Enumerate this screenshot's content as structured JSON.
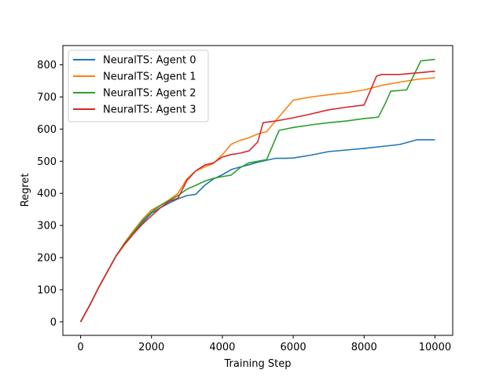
{
  "chart_data": {
    "type": "line",
    "xlabel": "Training Step",
    "ylabel": "Regret",
    "xlim": [
      -500,
      10500
    ],
    "ylim": [
      -42,
      860
    ],
    "xticks": [
      0,
      2000,
      4000,
      6000,
      8000,
      10000
    ],
    "yticks": [
      0,
      100,
      200,
      300,
      400,
      500,
      600,
      700,
      800
    ],
    "grid": false,
    "legend_position": "top-left",
    "series": [
      {
        "name": "NeuralTS: Agent 0",
        "color": "#1f77b4",
        "points": [
          [
            0,
            0
          ],
          [
            250,
            50
          ],
          [
            500,
            105
          ],
          [
            750,
            155
          ],
          [
            1000,
            205
          ],
          [
            1250,
            245
          ],
          [
            1500,
            280
          ],
          [
            1750,
            310
          ],
          [
            2000,
            338
          ],
          [
            2250,
            355
          ],
          [
            2500,
            370
          ],
          [
            2750,
            383
          ],
          [
            3000,
            393
          ],
          [
            3250,
            397
          ],
          [
            3500,
            425
          ],
          [
            3750,
            445
          ],
          [
            4000,
            458
          ],
          [
            4250,
            474
          ],
          [
            4500,
            482
          ],
          [
            4750,
            489
          ],
          [
            5000,
            497
          ],
          [
            5250,
            503
          ],
          [
            5500,
            509
          ],
          [
            5750,
            509
          ],
          [
            6000,
            510
          ],
          [
            6500,
            519
          ],
          [
            7000,
            530
          ],
          [
            7500,
            535
          ],
          [
            8000,
            540
          ],
          [
            8500,
            546
          ],
          [
            9000,
            552
          ],
          [
            9500,
            567
          ],
          [
            10000,
            567
          ]
        ]
      },
      {
        "name": "NeuralTS: Agent 1",
        "color": "#ff7f0e",
        "points": [
          [
            0,
            0
          ],
          [
            250,
            50
          ],
          [
            500,
            105
          ],
          [
            750,
            155
          ],
          [
            1000,
            205
          ],
          [
            1250,
            248
          ],
          [
            1500,
            285
          ],
          [
            1750,
            320
          ],
          [
            2000,
            348
          ],
          [
            2250,
            363
          ],
          [
            2500,
            380
          ],
          [
            2750,
            400
          ],
          [
            3000,
            445
          ],
          [
            3250,
            470
          ],
          [
            3500,
            482
          ],
          [
            3750,
            493
          ],
          [
            4000,
            520
          ],
          [
            4250,
            553
          ],
          [
            4500,
            565
          ],
          [
            4750,
            573
          ],
          [
            5000,
            585
          ],
          [
            5250,
            592
          ],
          [
            5500,
            625
          ],
          [
            5750,
            658
          ],
          [
            6000,
            690
          ],
          [
            6500,
            700
          ],
          [
            7000,
            707
          ],
          [
            7500,
            713
          ],
          [
            8000,
            722
          ],
          [
            8500,
            736
          ],
          [
            9000,
            746
          ],
          [
            9500,
            755
          ],
          [
            10000,
            760
          ]
        ]
      },
      {
        "name": "NeuralTS: Agent 2",
        "color": "#2ca02c",
        "points": [
          [
            0,
            0
          ],
          [
            250,
            50
          ],
          [
            500,
            105
          ],
          [
            750,
            155
          ],
          [
            1000,
            205
          ],
          [
            1250,
            245
          ],
          [
            1500,
            280
          ],
          [
            1750,
            315
          ],
          [
            2000,
            342
          ],
          [
            2250,
            362
          ],
          [
            2500,
            378
          ],
          [
            2750,
            393
          ],
          [
            3000,
            413
          ],
          [
            3250,
            425
          ],
          [
            3500,
            438
          ],
          [
            3750,
            447
          ],
          [
            4000,
            452
          ],
          [
            4250,
            457
          ],
          [
            4500,
            480
          ],
          [
            4750,
            495
          ],
          [
            5000,
            500
          ],
          [
            5250,
            505
          ],
          [
            5600,
            596
          ],
          [
            6000,
            605
          ],
          [
            6500,
            613
          ],
          [
            7000,
            620
          ],
          [
            7500,
            625
          ],
          [
            8000,
            633
          ],
          [
            8400,
            637
          ],
          [
            8600,
            680
          ],
          [
            8750,
            718
          ],
          [
            9200,
            722
          ],
          [
            9600,
            812
          ],
          [
            10000,
            817
          ]
        ]
      },
      {
        "name": "NeuralTS: Agent 3",
        "color": "#d62728",
        "points": [
          [
            0,
            0
          ],
          [
            250,
            50
          ],
          [
            500,
            105
          ],
          [
            750,
            155
          ],
          [
            1000,
            205
          ],
          [
            1250,
            242
          ],
          [
            1500,
            275
          ],
          [
            1750,
            305
          ],
          [
            2000,
            330
          ],
          [
            2250,
            355
          ],
          [
            2500,
            375
          ],
          [
            2750,
            385
          ],
          [
            3000,
            440
          ],
          [
            3250,
            470
          ],
          [
            3500,
            488
          ],
          [
            3750,
            495
          ],
          [
            4000,
            513
          ],
          [
            4250,
            521
          ],
          [
            4500,
            525
          ],
          [
            4750,
            532
          ],
          [
            5000,
            560
          ],
          [
            5150,
            620
          ],
          [
            5500,
            625
          ],
          [
            6000,
            635
          ],
          [
            6500,
            647
          ],
          [
            7000,
            660
          ],
          [
            7500,
            668
          ],
          [
            8000,
            675
          ],
          [
            8350,
            765
          ],
          [
            8500,
            770
          ],
          [
            9000,
            770
          ],
          [
            9500,
            775
          ],
          [
            10000,
            780
          ]
        ]
      }
    ]
  }
}
